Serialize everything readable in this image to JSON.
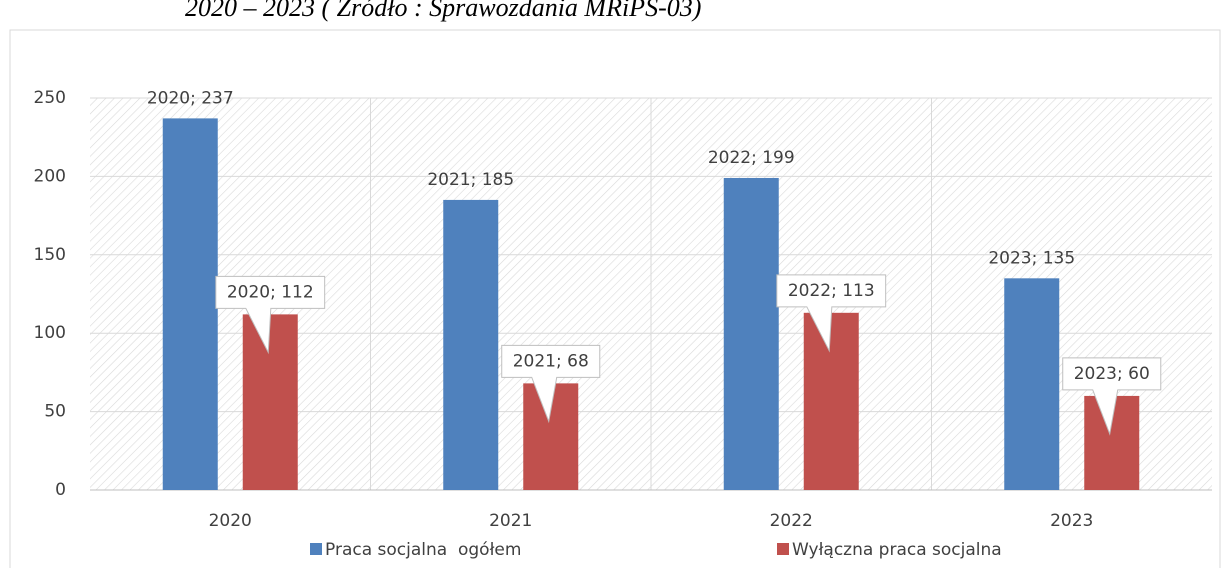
{
  "chart_data": {
    "type": "bar",
    "title": "2020 – 2023 ( Źródło : Sprawozdania MRiPS-03)",
    "categories": [
      "2020",
      "2021",
      "2022",
      "2023"
    ],
    "series": [
      {
        "name": "Praca socjalna  ogółem",
        "color": "#4f81bd",
        "values": [
          237,
          185,
          199,
          135
        ],
        "value_labels": [
          "2020; 237",
          "2021; 185",
          "2022; 199",
          "2023; 135"
        ]
      },
      {
        "name": "Wyłączna praca socjalna",
        "color": "#c0504d",
        "values": [
          112,
          68,
          113,
          60
        ],
        "value_labels": [
          "2020; 112",
          "2021; 68",
          "2022; 113",
          "2023; 60"
        ]
      }
    ],
    "ylim": [
      0,
      250
    ],
    "yticks": [
      0,
      50,
      100,
      150,
      200,
      250
    ],
    "grid": true,
    "legend": "bottom"
  }
}
